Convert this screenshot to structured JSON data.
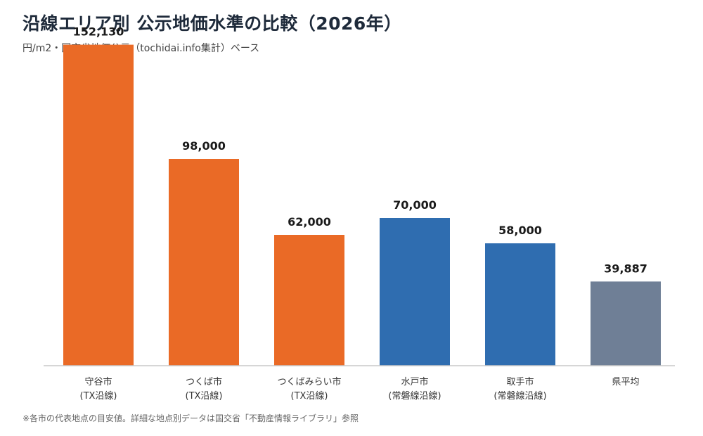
{
  "title": "沿線エリア別 公示地価水準の比較（2026年）",
  "subtitle": "円/m2・国交省地価公示（tochidai.info集計）ベース",
  "footnote": "※各市の代表地点の目安値。詳細な地点別データは国交省「不動産情報ライブラリ」参照",
  "chart_data": {
    "type": "bar",
    "title": "沿線エリア別 公示地価水準の比較（2026年）",
    "ylabel": "",
    "xlabel": "",
    "ylim": [
      0,
      160000
    ],
    "grid": false,
    "legend": "none",
    "categories": [
      [
        "守谷市",
        "(TX沿線)"
      ],
      [
        "つくば市",
        "(TX沿線)"
      ],
      [
        "つくばみらい市",
        "(TX沿線)"
      ],
      [
        "水戸市",
        "(常磐線沿線)"
      ],
      [
        "取手市",
        "(常磐線沿線)"
      ],
      [
        "県平均"
      ]
    ],
    "values": [
      152130,
      98000,
      62000,
      70000,
      58000,
      39887
    ],
    "value_labels": [
      "152,130",
      "98,000",
      "62,000",
      "70,000",
      "58,000",
      "39,887"
    ],
    "bar_colors": [
      "#ea6a26",
      "#ea6a26",
      "#ea6a26",
      "#2f6db0",
      "#2f6db0",
      "#6f7f96"
    ]
  }
}
